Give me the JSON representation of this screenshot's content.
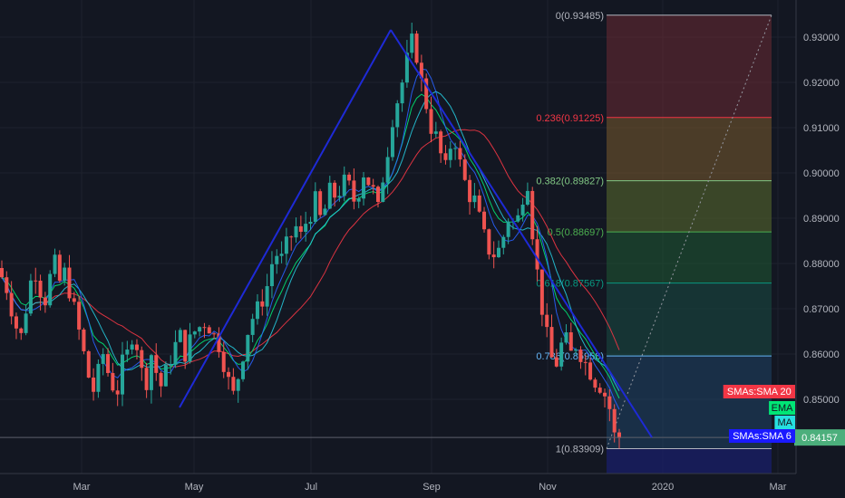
{
  "chart_data": {
    "type": "candlestick",
    "y_axis": {
      "ticks": [
        0.85,
        0.86,
        0.87,
        0.88,
        0.89,
        0.9,
        0.91,
        0.92,
        0.93
      ],
      "tick_labels": [
        "0.85000",
        "0.86000",
        "0.87000",
        "0.88000",
        "0.89000",
        "0.90000",
        "0.91000",
        "0.92000",
        "0.93000"
      ],
      "ylim": [
        0.8335,
        0.9385
      ]
    },
    "x_axis": {
      "labels": [
        "Mar",
        "May",
        "Jul",
        "Sep",
        "Nov",
        "2020",
        "Mar"
      ]
    },
    "last_price": "0.84157",
    "fibonacci": [
      {
        "label": "0(0.93485)",
        "value": 0.93485,
        "color": "#b2b5be"
      },
      {
        "label": "0.236(0.91225)",
        "value": 0.91225,
        "color": "#f23645"
      },
      {
        "label": "0.382(0.89827)",
        "value": 0.89827,
        "color": "#81c784"
      },
      {
        "label": "0.5(0.88697)",
        "value": 0.88697,
        "color": "#4caf50"
      },
      {
        "label": "0.618(0.87567)",
        "value": 0.87567,
        "color": "#089981"
      },
      {
        "label": "0.786(0.85958)",
        "value": 0.85958,
        "color": "#64b5f6"
      },
      {
        "label": "1(0.83909)",
        "value": 0.83909,
        "color": "#b2b5be"
      }
    ],
    "fib_zone_colors": [
      "#6b2a33",
      "#7a5b2d",
      "#5b6e2e",
      "#1f5a33",
      "#1a4d44",
      "#1f4366",
      "#30333d"
    ],
    "indicator_tags": [
      {
        "label": "SMAs:SMA 20",
        "bg": "#f23645",
        "fg": "#ffffff"
      },
      {
        "label": "EMA",
        "bg": "#00e676",
        "fg": "#131722"
      },
      {
        "label": "MA",
        "bg": "#26e0e0",
        "fg": "#131722"
      },
      {
        "label": "SMAs:SMA 6",
        "bg": "#1a1aff",
        "fg": "#ffffff"
      }
    ],
    "price_path": [
      0.877,
      0.8745,
      0.87,
      0.866,
      0.864,
      0.87,
      0.876,
      0.878,
      0.874,
      0.872,
      0.877,
      0.88,
      0.876,
      0.878,
      0.874,
      0.87,
      0.865,
      0.86,
      0.855,
      0.852,
      0.856,
      0.86,
      0.856,
      0.853,
      0.852,
      0.858,
      0.86,
      0.864,
      0.862,
      0.856,
      0.854,
      0.86,
      0.856,
      0.853,
      0.856,
      0.859,
      0.862,
      0.864,
      0.86,
      0.863,
      0.865,
      0.866,
      0.867,
      0.866,
      0.864,
      0.862,
      0.858,
      0.854,
      0.851,
      0.855,
      0.86,
      0.865,
      0.868,
      0.87,
      0.872,
      0.875,
      0.88,
      0.882,
      0.881,
      0.884,
      0.886,
      0.888,
      0.886,
      0.889,
      0.891,
      0.894,
      0.89,
      0.892,
      0.896,
      0.895,
      0.896,
      0.898,
      0.897,
      0.894,
      0.896,
      0.9,
      0.898,
      0.896,
      0.892,
      0.899,
      0.905,
      0.912,
      0.916,
      0.92,
      0.925,
      0.929,
      0.926,
      0.92,
      0.915,
      0.91,
      0.908,
      0.904,
      0.901,
      0.906,
      0.907,
      0.902,
      0.898,
      0.895,
      0.894,
      0.89,
      0.886,
      0.883,
      0.882,
      0.883,
      0.886,
      0.89,
      0.889,
      0.89,
      0.895,
      0.898,
      0.887,
      0.878,
      0.87,
      0.864,
      0.859,
      0.858,
      0.862,
      0.863,
      0.86,
      0.862,
      0.86,
      0.858,
      0.856,
      0.854,
      0.853,
      0.851,
      0.848,
      0.842,
      0.8416
    ]
  }
}
